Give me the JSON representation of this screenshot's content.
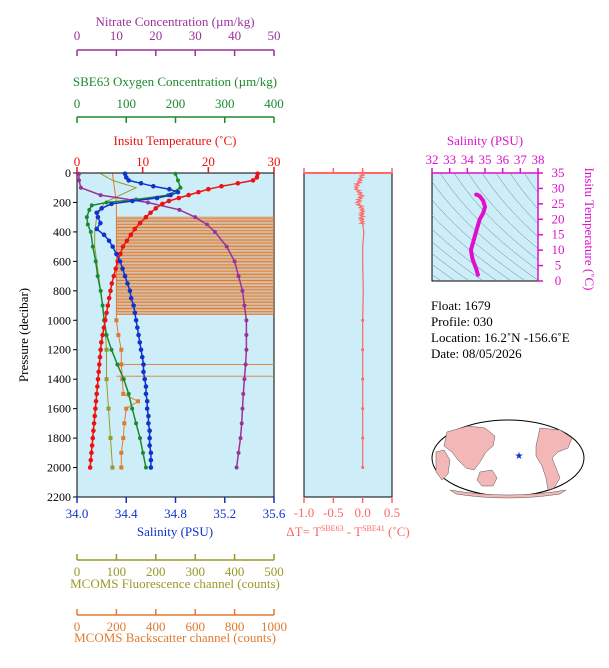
{
  "colors": {
    "nitrate": "#993399",
    "oxygen": "#1b8a2e",
    "temperature": "#ee1111",
    "salinity": "#1133cc",
    "fluorescence": "#99992a",
    "backscatter": "#e07a30",
    "delta": "#ff6666",
    "salinity_temp_axis": "#dd11cc",
    "plot_bg": "#cdeef8"
  },
  "chart_data": [
    {
      "type": "line",
      "title": "",
      "ylabel": "Pressure (decibar)",
      "yticks": [
        "0",
        "200",
        "400",
        "600",
        "800",
        "1000",
        "1200",
        "1400",
        "1600",
        "1800",
        "2000",
        "2200"
      ],
      "ylim": [
        0,
        2200
      ],
      "axes": [
        {
          "key": "nitrate",
          "label": "Nitrate Concentration (µm/kg)",
          "range": [
            0,
            50
          ],
          "ticks": [
            "0",
            "10",
            "20",
            "30",
            "40",
            "50"
          ]
        },
        {
          "key": "oxygen",
          "label": "SBE63 Oxygen Concentration (µm/kg)",
          "range": [
            0,
            400
          ],
          "ticks": [
            "0",
            "100",
            "200",
            "300",
            "400"
          ]
        },
        {
          "key": "temperature",
          "label": "Insitu Temperature (˚C)",
          "range": [
            0,
            30
          ],
          "ticks": [
            "0",
            "10",
            "20",
            "30"
          ]
        },
        {
          "key": "salinity",
          "label": "Salinity (PSU)",
          "range": [
            34.0,
            35.6
          ],
          "ticks": [
            "34.0",
            "34.4",
            "34.8",
            "35.2",
            "35.6"
          ]
        },
        {
          "key": "fluorescence",
          "label": "MCOMS Fluorescence channel (counts)",
          "range": [
            0,
            500
          ],
          "ticks": [
            "0",
            "100",
            "200",
            "300",
            "400",
            "500"
          ]
        },
        {
          "key": "backscatter",
          "label": "MCOMS Backscatter channel (counts)",
          "range": [
            0,
            1000
          ],
          "ticks": [
            "0",
            "200",
            "400",
            "600",
            "800",
            "1000"
          ]
        }
      ],
      "series": [
        {
          "key": "temperature",
          "pressure": [
            5,
            30,
            50,
            70,
            90,
            110,
            130,
            150,
            170,
            190,
            210,
            240,
            270,
            300,
            340,
            380,
            420,
            460,
            500,
            550,
            600,
            650,
            700,
            750,
            800,
            850,
            900,
            950,
            1000,
            1050,
            1100,
            1150,
            1200,
            1250,
            1300,
            1350,
            1400,
            1450,
            1500,
            1550,
            1600,
            1650,
            1700,
            1750,
            1800,
            1850,
            1900,
            1950,
            2000
          ],
          "values": [
            27.5,
            27.4,
            26.8,
            24.5,
            22.0,
            20.0,
            18.5,
            17.0,
            15.5,
            14.0,
            13.0,
            12.0,
            11.2,
            10.5,
            9.6,
            8.8,
            8.2,
            7.6,
            7.0,
            6.6,
            6.2,
            5.9,
            5.6,
            5.3,
            5.1,
            4.9,
            4.7,
            4.5,
            4.3,
            4.1,
            3.9,
            3.7,
            3.6,
            3.5,
            3.4,
            3.3,
            3.2,
            3.1,
            3.0,
            2.9,
            2.8,
            2.7,
            2.6,
            2.5,
            2.4,
            2.3,
            2.2,
            2.1,
            2.0
          ]
        },
        {
          "key": "salinity",
          "pressure": [
            5,
            30,
            50,
            70,
            90,
            110,
            130,
            150,
            170,
            190,
            210,
            240,
            270,
            300,
            340,
            380,
            420,
            460,
            500,
            550,
            600,
            650,
            700,
            750,
            800,
            850,
            900,
            950,
            1000,
            1050,
            1100,
            1150,
            1200,
            1250,
            1300,
            1350,
            1400,
            1450,
            1500,
            1550,
            1600,
            1650,
            1700,
            1750,
            1800,
            1850,
            1900,
            1950,
            2000
          ],
          "values": [
            34.39,
            34.4,
            34.42,
            34.52,
            34.62,
            34.75,
            34.82,
            34.76,
            34.65,
            34.45,
            34.28,
            34.2,
            34.16,
            34.17,
            34.19,
            34.16,
            34.22,
            34.26,
            34.29,
            34.32,
            34.35,
            34.37,
            34.39,
            34.41,
            34.43,
            34.44,
            34.46,
            34.47,
            34.48,
            34.49,
            34.5,
            34.51,
            34.52,
            34.53,
            34.54,
            34.54,
            34.55,
            34.56,
            34.56,
            34.57,
            34.57,
            34.58,
            34.58,
            34.59,
            34.59,
            34.59,
            34.6,
            34.6,
            34.6
          ]
        },
        {
          "key": "oxygen",
          "pressure": [
            5,
            50,
            100,
            150,
            180,
            200,
            220,
            250,
            300,
            350,
            400,
            500,
            600,
            700,
            800,
            900,
            1000,
            1100,
            1200,
            1300,
            1400,
            1500,
            1600,
            1700,
            1800,
            1900,
            2000
          ],
          "values": [
            200,
            205,
            210,
            185,
            120,
            60,
            30,
            25,
            20,
            22,
            28,
            32,
            38,
            42,
            48,
            52,
            55,
            60,
            70,
            82,
            95,
            105,
            112,
            120,
            128,
            134,
            140
          ]
        },
        {
          "key": "nitrate",
          "pressure": [
            5,
            50,
            100,
            150,
            200,
            250,
            300,
            350,
            400,
            500,
            600,
            700,
            800,
            900,
            1000,
            1100,
            1200,
            1300,
            1400,
            1500,
            1600,
            1700,
            1800,
            1900,
            2000
          ],
          "values": [
            0.5,
            0.5,
            1,
            6,
            18,
            26,
            30,
            33,
            35,
            38,
            40,
            41,
            42,
            42.5,
            43,
            43,
            43,
            42.8,
            42.5,
            42.2,
            42,
            41.8,
            41.5,
            41,
            40.5
          ]
        },
        {
          "key": "fluorescence",
          "pressure": [
            5,
            50,
            100,
            150,
            200,
            300,
            400,
            500,
            600,
            800,
            1000,
            1200,
            1400,
            1600,
            1800,
            2000
          ],
          "values": [
            60,
            90,
            150,
            110,
            70,
            50,
            45,
            45,
            50,
            60,
            70,
            75,
            75,
            80,
            85,
            90
          ]
        },
        {
          "key": "backscatter",
          "pressure": [
            5,
            100,
            200,
            300,
            400,
            500,
            600,
            700,
            800,
            900,
            1000,
            1100,
            1200,
            1300,
            1400,
            1500,
            1550,
            1600,
            1700,
            1800,
            1900,
            2000
          ],
          "values": [
            180,
            190,
            200,
            200,
            200,
            200,
            200,
            200,
            200,
            200,
            200,
            210,
            225,
            225,
            230,
            235,
            310,
            250,
            240,
            235,
            225,
            225
          ]
        }
      ]
    },
    {
      "type": "line",
      "title": "",
      "xlabel": "ΔT= T",
      "xlabel_sup1": "SBE63",
      "xlabel_mid": " - T",
      "xlabel_sup2": "SBE41",
      "xlabel_unit": " (˚C)",
      "xticks": [
        "-1.0",
        "-0.5",
        "0.0",
        "0.5"
      ],
      "xlim": [
        -1.0,
        0.5
      ],
      "ylim": [
        0,
        2200
      ],
      "series": [
        {
          "name": "",
          "pressure": [
            5,
            50,
            100,
            150,
            200,
            250,
            300,
            400,
            500,
            600,
            800,
            1000,
            1200,
            1400,
            1600,
            1800,
            2000
          ],
          "values": [
            0.0,
            -0.05,
            -0.12,
            -0.02,
            -0.08,
            0.0,
            -0.02,
            0.02,
            0.0,
            0.0,
            0.01,
            0.0,
            0.0,
            0.0,
            0.0,
            0.0,
            0.0
          ]
        }
      ]
    },
    {
      "type": "line",
      "title": "Salinity (PSU)",
      "xticks": [
        "32",
        "33",
        "34",
        "35",
        "36",
        "37",
        "38"
      ],
      "xlim": [
        32,
        38
      ],
      "ylabel": "Insitu Temperature (˚C)",
      "yticks": [
        "0",
        "5",
        "10",
        "15",
        "20",
        "25",
        "30",
        "35"
      ],
      "ylim": [
        0,
        35
      ],
      "series": [
        {
          "name": "",
          "x": [
            34.6,
            34.5,
            34.3,
            34.2,
            34.4,
            34.55,
            34.7,
            34.9,
            35.0,
            34.9,
            34.7,
            34.55,
            34.5
          ],
          "y": [
            2,
            4,
            7,
            10,
            14,
            17,
            20,
            22,
            24,
            26,
            27.5,
            28,
            28
          ]
        }
      ]
    }
  ],
  "info": {
    "float": "Float:  1679",
    "profile": "Profile:  030",
    "location": "Location:  16.2˚N  -156.6˚E",
    "date": "Date:  08/05/2026"
  }
}
